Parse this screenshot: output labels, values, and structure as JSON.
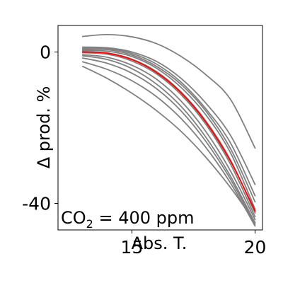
{
  "chart_data": {
    "type": "line",
    "xlabel": "Abs. T.",
    "ylabel": "Δ prod. %",
    "xlim": [
      12.0,
      20.3
    ],
    "ylim": [
      -47,
      7
    ],
    "xticks": [
      15,
      20
    ],
    "yticks": [
      0,
      -40
    ],
    "grid": false,
    "annotation": {
      "prefix": "CO",
      "subscript": "2",
      "suffix": " = 400 ppm",
      "position": "bottom-left"
    },
    "series": [
      {
        "color": "#808080",
        "points": [
          [
            13.0,
            4.1
          ],
          [
            14.0,
            4.6
          ],
          [
            15.0,
            4.0
          ],
          [
            16.0,
            2.2
          ],
          [
            17.0,
            -1.2
          ],
          [
            18.0,
            -6.0
          ],
          [
            19.0,
            -12.5
          ],
          [
            20.0,
            -25.4
          ]
        ]
      },
      {
        "color": "#808080",
        "points": [
          [
            13.0,
            1.3
          ],
          [
            14.0,
            1.1
          ],
          [
            15.0,
            0.0
          ],
          [
            16.0,
            -2.5
          ],
          [
            17.0,
            -7.0
          ],
          [
            18.0,
            -13.5
          ],
          [
            19.0,
            -22.0
          ],
          [
            20.0,
            -35.0
          ]
        ]
      },
      {
        "color": "#808080",
        "points": [
          [
            13.0,
            1.0
          ],
          [
            14.0,
            0.9
          ],
          [
            15.0,
            -0.4
          ],
          [
            16.0,
            -3.2
          ],
          [
            17.0,
            -8.0
          ],
          [
            18.0,
            -15.0
          ],
          [
            19.0,
            -24.0
          ],
          [
            20.0,
            -38.0
          ]
        ]
      },
      {
        "color": "#808080",
        "points": [
          [
            13.0,
            0.7
          ],
          [
            14.0,
            0.6
          ],
          [
            15.0,
            -0.8
          ],
          [
            16.0,
            -3.8
          ],
          [
            17.0,
            -8.6
          ],
          [
            18.0,
            -15.6
          ],
          [
            19.0,
            -25.5
          ],
          [
            20.0,
            -39.6
          ]
        ]
      },
      {
        "color": "#808080",
        "points": [
          [
            13.0,
            0.4
          ],
          [
            14.0,
            0.2
          ],
          [
            15.0,
            -1.2
          ],
          [
            16.0,
            -4.3
          ],
          [
            17.0,
            -9.4
          ],
          [
            18.0,
            -16.6
          ],
          [
            19.0,
            -26.6
          ],
          [
            20.0,
            -41.5
          ]
        ]
      },
      {
        "color": "#808080",
        "points": [
          [
            13.0,
            0.1
          ],
          [
            14.0,
            -0.3
          ],
          [
            15.0,
            -1.9
          ],
          [
            16.0,
            -5.2
          ],
          [
            17.0,
            -10.6
          ],
          [
            18.0,
            -18.2
          ],
          [
            19.0,
            -28.5
          ],
          [
            20.0,
            -42.5
          ]
        ]
      },
      {
        "color": "#808080",
        "points": [
          [
            13.0,
            -0.2
          ],
          [
            14.0,
            -0.6
          ],
          [
            15.0,
            -2.4
          ],
          [
            16.0,
            -5.8
          ],
          [
            17.0,
            -11.3
          ],
          [
            18.0,
            -19.1
          ],
          [
            19.0,
            -29.6
          ],
          [
            20.0,
            -43.5
          ]
        ]
      },
      {
        "color": "#808080",
        "points": [
          [
            13.0,
            -0.7
          ],
          [
            14.0,
            -1.4
          ],
          [
            15.0,
            -3.5
          ],
          [
            16.0,
            -7.2
          ],
          [
            17.0,
            -13.0
          ],
          [
            18.0,
            -21.0
          ],
          [
            19.0,
            -31.4
          ],
          [
            20.0,
            -44.3
          ]
        ]
      },
      {
        "color": "#808080",
        "points": [
          [
            13.0,
            -1.0
          ],
          [
            14.0,
            -2.0
          ],
          [
            15.0,
            -4.4
          ],
          [
            16.0,
            -8.5
          ],
          [
            17.0,
            -14.4
          ],
          [
            18.0,
            -22.5
          ],
          [
            19.0,
            -32.8
          ],
          [
            20.0,
            -45.2
          ]
        ]
      },
      {
        "color": "#808080",
        "points": [
          [
            13.0,
            -1.6
          ],
          [
            14.0,
            -3.0
          ],
          [
            15.0,
            -5.6
          ],
          [
            16.0,
            -9.7
          ],
          [
            17.0,
            -15.6
          ],
          [
            18.0,
            -23.6
          ],
          [
            19.0,
            -33.6
          ],
          [
            20.0,
            -45.6
          ]
        ]
      },
      {
        "color": "#808080",
        "points": [
          [
            13.0,
            -2.6
          ],
          [
            14.0,
            -4.6
          ],
          [
            15.0,
            -7.6
          ],
          [
            16.0,
            -11.8
          ],
          [
            17.0,
            -17.6
          ],
          [
            18.0,
            -25.2
          ],
          [
            19.0,
            -34.6
          ],
          [
            20.0,
            -46.0
          ]
        ]
      },
      {
        "color": "#808080",
        "points": [
          [
            13.0,
            -3.8
          ],
          [
            14.0,
            -7.0
          ],
          [
            15.0,
            -10.9
          ],
          [
            16.0,
            -15.5
          ],
          [
            17.0,
            -21.0
          ],
          [
            18.0,
            -27.8
          ],
          [
            19.0,
            -35.8
          ],
          [
            20.0,
            -45.0
          ]
        ]
      },
      {
        "color": "#ff0000",
        "points": [
          [
            13.0,
            0.0
          ],
          [
            14.0,
            -0.3
          ],
          [
            15.0,
            -2.0
          ],
          [
            16.0,
            -5.4
          ],
          [
            17.0,
            -10.8
          ],
          [
            18.0,
            -18.5
          ],
          [
            19.0,
            -28.8
          ],
          [
            20.0,
            -42.0
          ]
        ]
      }
    ]
  }
}
